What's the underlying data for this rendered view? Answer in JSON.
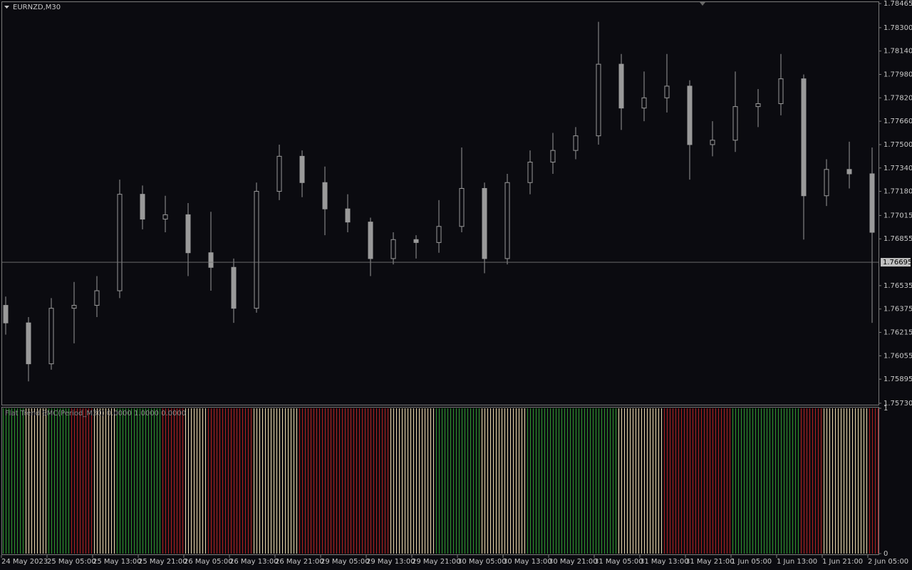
{
  "chart_data": [
    {
      "type": "candlestick",
      "title": "EURNZD,M30",
      "categories": [
        "24 May 2023",
        null,
        "25 May 05:00",
        null,
        "25 May 13:00",
        null,
        "25 May 21:00",
        null,
        "26 May 05:00",
        null,
        "26 May 13:00",
        null,
        "26 May 21:00",
        null,
        "29 May 05:00",
        null,
        "29 May 13:00",
        null,
        "29 May 21:00",
        null,
        "30 May 05:00",
        null,
        "30 May 13:00",
        null,
        "30 May 21:00",
        null,
        "31 May 05:00",
        null,
        "31 May 13:00",
        null,
        "31 May 21:00",
        null,
        "1 Jun 05:00",
        null,
        "1 Jun 13:00",
        null,
        "1 Jun 21:00",
        null,
        "2 Jun 05:00"
      ],
      "open": [
        1.764,
        1.7628,
        1.76,
        1.7638,
        1.764,
        1.765,
        1.7716,
        1.7699,
        1.7702,
        1.7676,
        1.7666,
        1.7638,
        1.7718,
        1.7742,
        1.7724,
        1.7706,
        1.7697,
        1.7672,
        1.7685,
        1.7683,
        1.7694,
        1.772,
        1.7672,
        1.7724,
        1.7738,
        1.7746,
        1.7756,
        1.7805,
        1.7775,
        1.7782,
        1.779,
        1.775,
        1.7753,
        1.7776,
        1.7778,
        1.7795,
        1.7715,
        1.7733,
        1.773
      ],
      "high": [
        1.7646,
        1.7632,
        1.7645,
        1.7656,
        1.766,
        1.7726,
        1.7722,
        1.7715,
        1.771,
        1.7704,
        1.7672,
        1.7724,
        1.775,
        1.7746,
        1.7735,
        1.7716,
        1.77,
        1.769,
        1.7688,
        1.7712,
        1.7748,
        1.7724,
        1.773,
        1.7746,
        1.7758,
        1.7762,
        1.7834,
        1.7812,
        1.78,
        1.7812,
        1.7794,
        1.7766,
        1.78,
        1.7788,
        1.7812,
        1.7798,
        1.774,
        1.7752,
        1.7748
      ],
      "low": [
        1.762,
        1.7588,
        1.7596,
        1.7614,
        1.7632,
        1.7645,
        1.7692,
        1.769,
        1.766,
        1.765,
        1.7628,
        1.7635,
        1.7712,
        1.7714,
        1.7688,
        1.769,
        1.766,
        1.7668,
        1.7672,
        1.7676,
        1.769,
        1.7662,
        1.7668,
        1.7716,
        1.773,
        1.774,
        1.775,
        1.776,
        1.7766,
        1.7772,
        1.7726,
        1.7742,
        1.7745,
        1.7762,
        1.777,
        1.7685,
        1.7708,
        1.772,
        1.7628
      ],
      "close": [
        1.7628,
        1.76,
        1.7638,
        1.764,
        1.765,
        1.7716,
        1.7699,
        1.7702,
        1.7676,
        1.7666,
        1.7638,
        1.7718,
        1.7742,
        1.7724,
        1.7706,
        1.7697,
        1.7672,
        1.7685,
        1.7683,
        1.7694,
        1.772,
        1.7672,
        1.7724,
        1.7738,
        1.7746,
        1.7756,
        1.7805,
        1.7775,
        1.7782,
        1.779,
        1.775,
        1.7753,
        1.7776,
        1.7778,
        1.7795,
        1.7715,
        1.7733,
        1.773,
        1.769
      ],
      "color": "#9a9a9a",
      "ylim": [
        1.7573,
        1.78465
      ],
      "yticks": [
        {
          "value": 1.78465,
          "label": "1.78465"
        },
        {
          "value": 1.783,
          "label": "1.78300"
        },
        {
          "value": 1.7814,
          "label": "1.78140"
        },
        {
          "value": 1.7798,
          "label": "1.77980"
        },
        {
          "value": 1.7782,
          "label": "1.77820"
        },
        {
          "value": 1.7766,
          "label": "1.77660"
        },
        {
          "value": 1.775,
          "label": "1.77500"
        },
        {
          "value": 1.7734,
          "label": "1.77340"
        },
        {
          "value": 1.7718,
          "label": "1.77180"
        },
        {
          "value": 1.77015,
          "label": "1.77015"
        },
        {
          "value": 1.76855,
          "label": "1.76855"
        },
        {
          "value": 1.76535,
          "label": "1.76535"
        },
        {
          "value": 1.76375,
          "label": "1.76375"
        },
        {
          "value": 1.76215,
          "label": "1.76215"
        },
        {
          "value": 1.76055,
          "label": "1.76055"
        },
        {
          "value": 1.75895,
          "label": "1.75895"
        },
        {
          "value": 1.7573,
          "label": "1.75730"
        }
      ],
      "price_line": {
        "value": 1.76695,
        "label": "1.76695"
      },
      "grid": false
    },
    {
      "type": "histogram",
      "title": "Flat Trend SMC(Period_M30) 0.0000 1.0000 0.0000",
      "values": [
        1,
        1,
        1,
        1,
        1,
        1,
        1,
        1,
        1,
        1,
        1,
        1,
        1,
        1,
        1,
        1,
        1,
        1,
        1,
        1,
        1,
        1,
        1,
        1,
        1,
        1,
        1,
        1,
        1,
        1,
        1,
        1,
        1,
        1,
        1,
        1,
        1,
        1,
        1
      ],
      "colors": [
        "#2f9a2f",
        "#f0dcae",
        "#2f9a2f",
        "#b52222",
        "#f0dcae",
        "#2f9a2f",
        "#2f9a2f",
        "#b52222",
        "#f0dcae",
        "#b52222",
        "#b52222",
        "#f0dcae",
        "#f0dcae",
        "#b52222",
        "#b52222",
        "#b52222",
        "#b52222",
        "#f0dcae",
        "#f0dcae",
        "#2f9a2f",
        "#2f9a2f",
        "#f0dcae",
        "#f0dcae",
        "#2f9a2f",
        "#2f9a2f",
        "#2f9a2f",
        "#2f9a2f",
        "#f0dcae",
        "#f0dcae",
        "#b52222",
        "#b52222",
        "#b52222",
        "#2f9a2f",
        "#2f9a2f",
        "#2f9a2f",
        "#b52222",
        "#f0dcae",
        "#f0dcae",
        "#b52222"
      ],
      "ylim": [
        0,
        1
      ],
      "yticks": [
        1,
        0
      ]
    }
  ]
}
